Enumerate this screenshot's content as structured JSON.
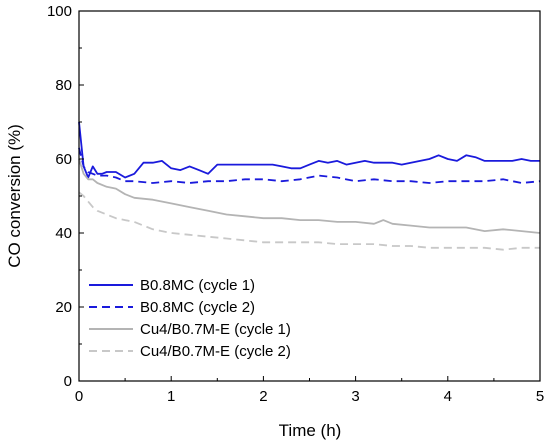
{
  "chart_data": {
    "type": "line",
    "title": "",
    "xlabel": "Time (h)",
    "ylabel": "CO conversion (%)",
    "xlim": [
      0,
      5
    ],
    "ylim": [
      0,
      100
    ],
    "xticks": [
      0,
      1,
      2,
      3,
      4,
      5
    ],
    "xtick_labels": [
      "0",
      "1",
      "2",
      "3",
      "4",
      "5"
    ],
    "yticks": [
      0,
      20,
      40,
      60,
      80,
      100
    ],
    "ytick_labels": [
      "0",
      "20",
      "40",
      "60",
      "80",
      "100"
    ],
    "grid": false,
    "legend_position": "bottom-left",
    "series": [
      {
        "name": "B0.8MC (cycle 1)",
        "color": "#1a1adc",
        "dash": "solid",
        "x": [
          0,
          0.05,
          0.1,
          0.15,
          0.2,
          0.25,
          0.3,
          0.4,
          0.5,
          0.6,
          0.7,
          0.8,
          0.9,
          1.0,
          1.1,
          1.2,
          1.3,
          1.4,
          1.5,
          1.6,
          1.7,
          1.8,
          1.9,
          2.0,
          2.1,
          2.2,
          2.3,
          2.4,
          2.5,
          2.6,
          2.7,
          2.8,
          2.9,
          3.0,
          3.1,
          3.2,
          3.3,
          3.4,
          3.5,
          3.6,
          3.7,
          3.8,
          3.9,
          4.0,
          4.1,
          4.2,
          4.3,
          4.4,
          4.5,
          4.6,
          4.7,
          4.8,
          4.9,
          5.0
        ],
        "y": [
          70,
          58,
          55,
          58,
          56,
          56,
          56.5,
          56.5,
          55,
          56,
          59,
          59,
          59.5,
          57.5,
          57,
          58,
          57,
          56,
          58.5,
          58.5,
          58.5,
          58.5,
          58.5,
          58.5,
          58.5,
          58,
          57.5,
          57.5,
          58.5,
          59.5,
          59,
          59.5,
          58.5,
          59,
          59.5,
          59,
          59,
          59,
          58.5,
          59,
          59.5,
          60,
          61,
          60,
          59.5,
          61,
          60.5,
          59.5,
          59.5,
          59.5,
          59.5,
          60,
          59.5,
          59.5
        ]
      },
      {
        "name": "B0.8MC (cycle 2)",
        "color": "#1a1adc",
        "dash": "dashed",
        "x": [
          0,
          0.05,
          0.1,
          0.15,
          0.2,
          0.3,
          0.4,
          0.5,
          0.6,
          0.8,
          1.0,
          1.2,
          1.4,
          1.6,
          1.8,
          2.0,
          2.2,
          2.4,
          2.6,
          2.8,
          3.0,
          3.2,
          3.4,
          3.6,
          3.8,
          4.0,
          4.2,
          4.4,
          4.6,
          4.8,
          5.0
        ],
        "y": [
          63,
          58,
          56.5,
          56,
          55.5,
          55.5,
          55,
          54,
          54,
          53.5,
          54,
          53.5,
          54,
          54,
          54.5,
          54.5,
          54,
          54.5,
          55.5,
          55,
          54,
          54.5,
          54,
          54,
          53.5,
          54,
          54,
          54,
          54.5,
          53.5,
          54
        ]
      },
      {
        "name": "Cu4/B0.7M-E (cycle 1)",
        "color": "#b4b4b4",
        "dash": "solid",
        "x": [
          0,
          0.05,
          0.1,
          0.15,
          0.2,
          0.3,
          0.4,
          0.5,
          0.6,
          0.8,
          1.0,
          1.2,
          1.4,
          1.6,
          1.8,
          2.0,
          2.2,
          2.4,
          2.6,
          2.8,
          3.0,
          3.2,
          3.3,
          3.4,
          3.6,
          3.8,
          4.0,
          4.2,
          4.4,
          4.6,
          4.8,
          5.0
        ],
        "y": [
          60,
          56,
          54.5,
          54.5,
          53.5,
          52.5,
          52,
          50.5,
          49.5,
          49,
          48,
          47,
          46,
          45,
          44.5,
          44,
          44,
          43.5,
          43.5,
          43,
          43,
          42.5,
          43.5,
          42.5,
          42,
          41.5,
          41.5,
          41.5,
          40.5,
          41,
          40.5,
          40
        ]
      },
      {
        "name": "Cu4/B0.7M-E (cycle 2)",
        "color": "#c8c8c8",
        "dash": "dashed",
        "x": [
          0,
          0.05,
          0.1,
          0.15,
          0.2,
          0.3,
          0.4,
          0.5,
          0.6,
          0.8,
          1.0,
          1.2,
          1.4,
          1.6,
          1.8,
          2.0,
          2.2,
          2.4,
          2.6,
          2.8,
          3.0,
          3.2,
          3.4,
          3.6,
          3.8,
          4.0,
          4.2,
          4.4,
          4.6,
          4.8,
          5.0
        ],
        "y": [
          51,
          50,
          48.5,
          47,
          46,
          45,
          44,
          43.5,
          43,
          41,
          40,
          39.5,
          39,
          38.5,
          38,
          37.5,
          37.5,
          37.5,
          37.5,
          37,
          37,
          37,
          36.5,
          36.5,
          36,
          36,
          36,
          36,
          35.5,
          36,
          36
        ]
      }
    ]
  }
}
